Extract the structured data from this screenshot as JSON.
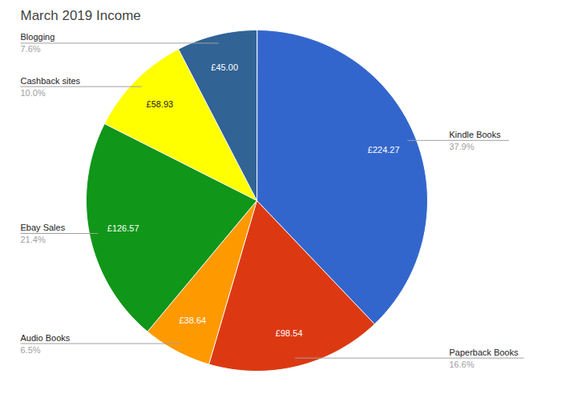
{
  "chart_data": {
    "type": "pie",
    "title": "March 2019 Income",
    "categories": [
      "Kindle Books",
      "Paperback Books",
      "Audio Books",
      "Ebay Sales",
      "Cashback sites",
      "Blogging"
    ],
    "values": [
      224.27,
      98.54,
      38.64,
      126.57,
      58.93,
      45.0
    ],
    "value_labels": [
      "£224.27",
      "£98.54",
      "£38.64",
      "£126.57",
      "£58.93",
      "£45.00"
    ],
    "percentages": [
      37.9,
      16.6,
      6.5,
      21.4,
      10.0,
      7.6
    ],
    "percentage_labels": [
      "37.9%",
      "16.6%",
      "6.5%",
      "21.4%",
      "10.0%",
      "7.6%"
    ],
    "colors": [
      "#3366cc",
      "#dc3912",
      "#ff9900",
      "#109618",
      "#ffff00",
      "#316395"
    ],
    "data_labels": true
  }
}
